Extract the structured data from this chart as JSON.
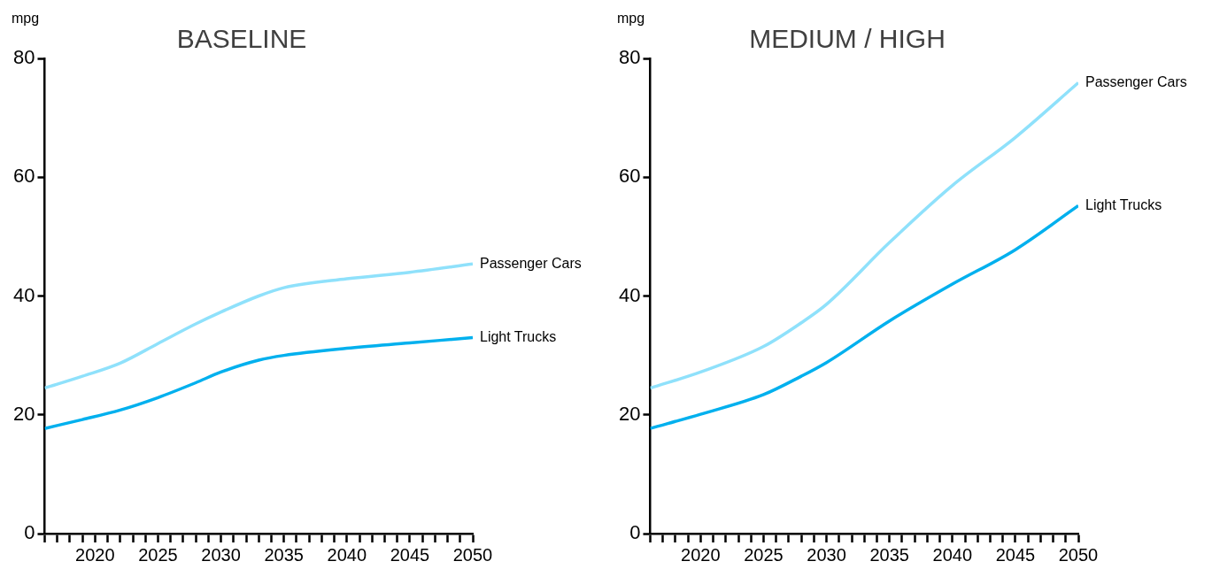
{
  "chart_data": [
    {
      "type": "line",
      "title": "BASELINE",
      "ylabel": "mpg",
      "xlim": [
        2016,
        2050
      ],
      "ylim": [
        0,
        80
      ],
      "yticks": [
        0,
        20,
        40,
        60,
        80
      ],
      "xticks": [
        {
          "value": 2016,
          "label": null
        },
        {
          "value": 2017,
          "label": null
        },
        {
          "value": 2018,
          "label": null
        },
        {
          "value": 2019,
          "label": null
        },
        2020,
        {
          "value": 2021,
          "label": null
        },
        {
          "value": 2022,
          "label": null
        },
        {
          "value": 2023,
          "label": null
        },
        {
          "value": 2024,
          "label": null
        },
        2025,
        {
          "value": 2026,
          "label": null
        },
        {
          "value": 2027,
          "label": null
        },
        {
          "value": 2028,
          "label": null
        },
        {
          "value": 2029,
          "label": null
        },
        2030,
        {
          "value": 2031,
          "label": null
        },
        {
          "value": 2032,
          "label": null
        },
        {
          "value": 2033,
          "label": null
        },
        {
          "value": 2034,
          "label": null
        },
        2035,
        {
          "value": 2036,
          "label": null
        },
        {
          "value": 2037,
          "label": null
        },
        {
          "value": 2038,
          "label": null
        },
        {
          "value": 2039,
          "label": null
        },
        2040,
        {
          "value": 2041,
          "label": null
        },
        {
          "value": 2042,
          "label": null
        },
        {
          "value": 2043,
          "label": null
        },
        {
          "value": 2044,
          "label": null
        },
        2045,
        {
          "value": 2046,
          "label": null
        },
        {
          "value": 2047,
          "label": null
        },
        {
          "value": 2048,
          "label": null
        },
        {
          "value": 2049,
          "label": null
        },
        2050
      ],
      "x": [
        2016,
        2019,
        2022,
        2025,
        2028,
        2030,
        2033,
        2035,
        2040,
        2045,
        2050
      ],
      "grid": false,
      "legend": false,
      "marker": "none",
      "series": [
        {
          "name": "Passenger Cars",
          "color": "#8fe1fb",
          "values": [
            24.5,
            26.5,
            28.7,
            32,
            35.3,
            37.3,
            40,
            41.4,
            42.9,
            44,
            45.4
          ]
        },
        {
          "name": "Light Trucks",
          "color": "#00b0ee",
          "values": [
            17.7,
            19.2,
            20.8,
            22.9,
            25.4,
            27.2,
            29.2,
            30,
            31.2,
            32.1,
            33
          ]
        }
      ]
    },
    {
      "type": "line",
      "title": "MEDIUM / HIGH",
      "ylabel": "mpg",
      "xlim": [
        2016,
        2050
      ],
      "ylim": [
        0,
        80
      ],
      "yticks": [
        0,
        20,
        40,
        60,
        80
      ],
      "xticks": [
        {
          "value": 2016,
          "label": null
        },
        {
          "value": 2017,
          "label": null
        },
        {
          "value": 2018,
          "label": null
        },
        {
          "value": 2019,
          "label": null
        },
        2020,
        {
          "value": 2021,
          "label": null
        },
        {
          "value": 2022,
          "label": null
        },
        {
          "value": 2023,
          "label": null
        },
        {
          "value": 2024,
          "label": null
        },
        2025,
        {
          "value": 2026,
          "label": null
        },
        {
          "value": 2027,
          "label": null
        },
        {
          "value": 2028,
          "label": null
        },
        {
          "value": 2029,
          "label": null
        },
        2030,
        {
          "value": 2031,
          "label": null
        },
        {
          "value": 2032,
          "label": null
        },
        {
          "value": 2033,
          "label": null
        },
        {
          "value": 2034,
          "label": null
        },
        2035,
        {
          "value": 2036,
          "label": null
        },
        {
          "value": 2037,
          "label": null
        },
        {
          "value": 2038,
          "label": null
        },
        {
          "value": 2039,
          "label": null
        },
        2040,
        {
          "value": 2041,
          "label": null
        },
        {
          "value": 2042,
          "label": null
        },
        {
          "value": 2043,
          "label": null
        },
        {
          "value": 2044,
          "label": null
        },
        2045,
        {
          "value": 2046,
          "label": null
        },
        {
          "value": 2047,
          "label": null
        },
        {
          "value": 2048,
          "label": null
        },
        {
          "value": 2049,
          "label": null
        },
        2050
      ],
      "x": [
        2016,
        2020,
        2025,
        2028,
        2030,
        2035,
        2040,
        2045,
        2050
      ],
      "grid": false,
      "legend": false,
      "marker": "none",
      "series": [
        {
          "name": "Passenger Cars",
          "color": "#8fe1fb",
          "values": [
            24.5,
            27.2,
            31.5,
            35.5,
            38.6,
            49,
            58.6,
            66.7,
            75.9
          ]
        },
        {
          "name": "Light Trucks",
          "color": "#00b0ee",
          "values": [
            17.7,
            20.1,
            23.4,
            26.5,
            28.8,
            35.8,
            42,
            47.8,
            55.2
          ]
        }
      ]
    }
  ]
}
